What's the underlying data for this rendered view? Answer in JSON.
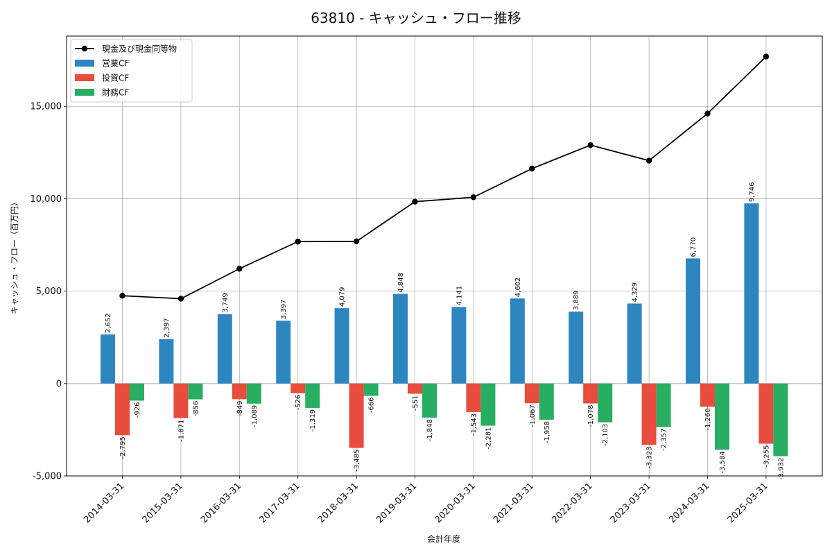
{
  "chart_data": {
    "type": "bar",
    "title": "63810 - キャッシュ・フロー推移",
    "xlabel": "会計年度",
    "ylabel": "キャッシュ・フロー（百万円）",
    "ylim": [
      -5000,
      18800
    ],
    "yticks": [
      -5000,
      0,
      5000,
      10000,
      15000
    ],
    "ytick_labels": [
      "-5,000",
      "0",
      "5,000",
      "10,000",
      "15,000"
    ],
    "grid": true,
    "legend_position": "top-left",
    "categories": [
      "2014-03-31",
      "2015-03-31",
      "2016-03-31",
      "2017-03-31",
      "2018-03-31",
      "2019-03-31",
      "2020-03-31",
      "2021-03-31",
      "2022-03-31",
      "2023-03-31",
      "2024-03-31",
      "2025-03-31"
    ],
    "line_series": {
      "name": "現金及び現金同等物",
      "color": "#000000",
      "values": [
        4750,
        4590,
        6210,
        7680,
        7690,
        9840,
        10080,
        11630,
        12900,
        12060,
        14610,
        17690
      ]
    },
    "series": [
      {
        "name": "営業CF",
        "color": "#2e86c1",
        "values": [
          2652,
          2397,
          3749,
          3397,
          4079,
          4848,
          4141,
          4602,
          3889,
          4329,
          6770,
          9746
        ],
        "labels": [
          "2,652",
          "2,397",
          "3,749",
          "3,397",
          "4,079",
          "4,848",
          "4,141",
          "4,602",
          "3,889",
          "4,329",
          "6,770",
          "9,746"
        ]
      },
      {
        "name": "投資CF",
        "color": "#e74c3c",
        "values": [
          -2795,
          -1871,
          -849,
          -526,
          -3485,
          -551,
          -1543,
          -1067,
          -1078,
          -3323,
          -1260,
          -3255
        ],
        "labels": [
          "-2,795",
          "-1,871",
          "-849",
          "-526",
          "-3,485",
          "-551",
          "-1,543",
          "-1,067",
          "-1,078",
          "-3,323",
          "-1,260",
          "-3,255"
        ]
      },
      {
        "name": "財務CF",
        "color": "#27ae60",
        "values": [
          -926,
          -856,
          -1089,
          -1319,
          -666,
          -1848,
          -2281,
          -1958,
          -2103,
          -2357,
          -3584,
          -3932
        ],
        "labels": [
          "-926",
          "-856",
          "-1,089",
          "-1,319",
          "-666",
          "-1,848",
          "-2,281",
          "-1,958",
          "-2,103",
          "-2,357",
          "-3,584",
          "-3,932"
        ]
      }
    ]
  }
}
